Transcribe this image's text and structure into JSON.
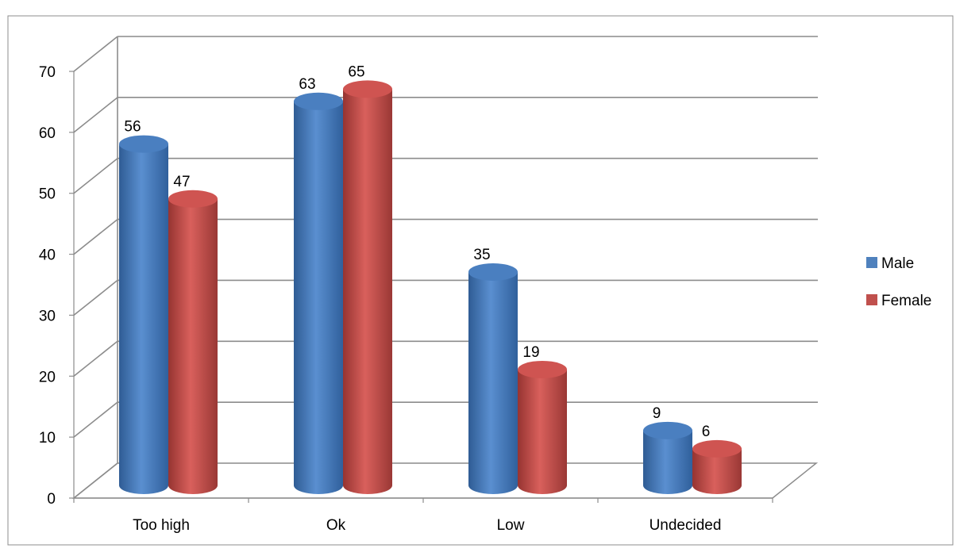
{
  "chart_data": {
    "type": "bar",
    "style": "3d-cylinder",
    "title": "",
    "xlabel": "",
    "ylabel": "",
    "categories": [
      "Too high",
      "Ok",
      "Low",
      "Undecided"
    ],
    "series": [
      {
        "name": "Male",
        "values": [
          56,
          63,
          35,
          9
        ],
        "color": "#4F81BD"
      },
      {
        "name": "Female",
        "values": [
          47,
          65,
          19,
          6
        ],
        "color": "#C0504D"
      }
    ],
    "ylim": [
      0,
      70
    ],
    "yticks": [
      0,
      10,
      20,
      30,
      40,
      50,
      60,
      70
    ],
    "grid": true,
    "data_labels": true,
    "legend_position": "right"
  }
}
